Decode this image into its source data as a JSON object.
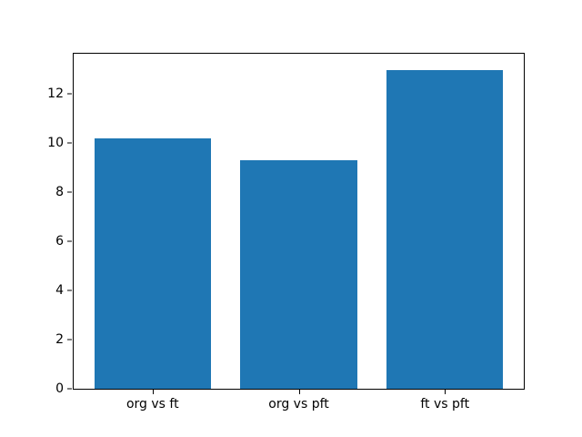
{
  "chart_data": {
    "type": "bar",
    "title": "",
    "xlabel": "",
    "ylabel": "",
    "categories": [
      "org vs ft",
      "org vs pft",
      "ft vs pft"
    ],
    "values": [
      10.2,
      9.3,
      13.0
    ],
    "ylim": [
      0,
      13.65
    ],
    "yticks": [
      0,
      2,
      4,
      6,
      8,
      10,
      12
    ],
    "bar_color": "#1f77b4",
    "bar_width_fraction": 0.8,
    "x_margin_fraction": 0.05,
    "grid": false,
    "legend": "none",
    "spine_color": "#000000",
    "text_color": "#000000",
    "background_color": "#ffffff"
  }
}
